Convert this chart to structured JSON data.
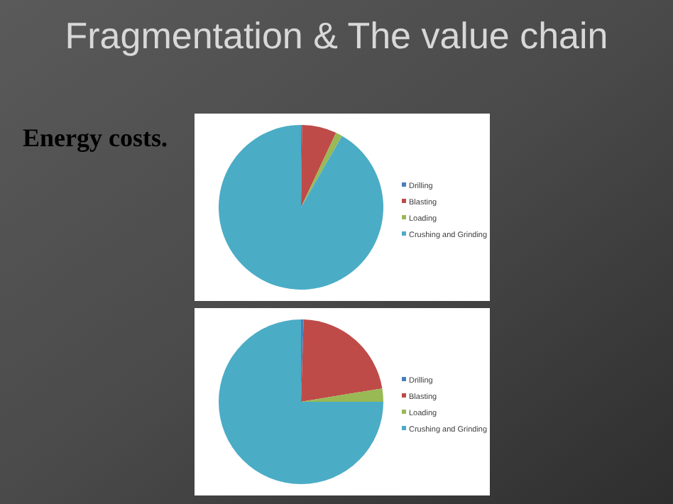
{
  "chart_data": [
    {
      "type": "pie",
      "title": "Fragmentation & The value chain",
      "subtitle": "Energy costs.",
      "categories": [
        "Drilling",
        "Blasting",
        "Loading",
        "Crushing and Grinding"
      ],
      "values": [
        0.2,
        6.8,
        1.3,
        91.7
      ],
      "colors": [
        "#4a7ebb",
        "#be4b48",
        "#98b954",
        "#4bacc6"
      ],
      "legend": "right"
    },
    {
      "type": "pie",
      "categories": [
        "Drilling",
        "Blasting",
        "Loading",
        "Crushing and Grinding"
      ],
      "values": [
        0.5,
        21.9,
        2.6,
        75
      ],
      "colors": [
        "#4a7ebb",
        "#be4b48",
        "#98b954",
        "#4bacc6"
      ],
      "legend": "right"
    }
  ]
}
